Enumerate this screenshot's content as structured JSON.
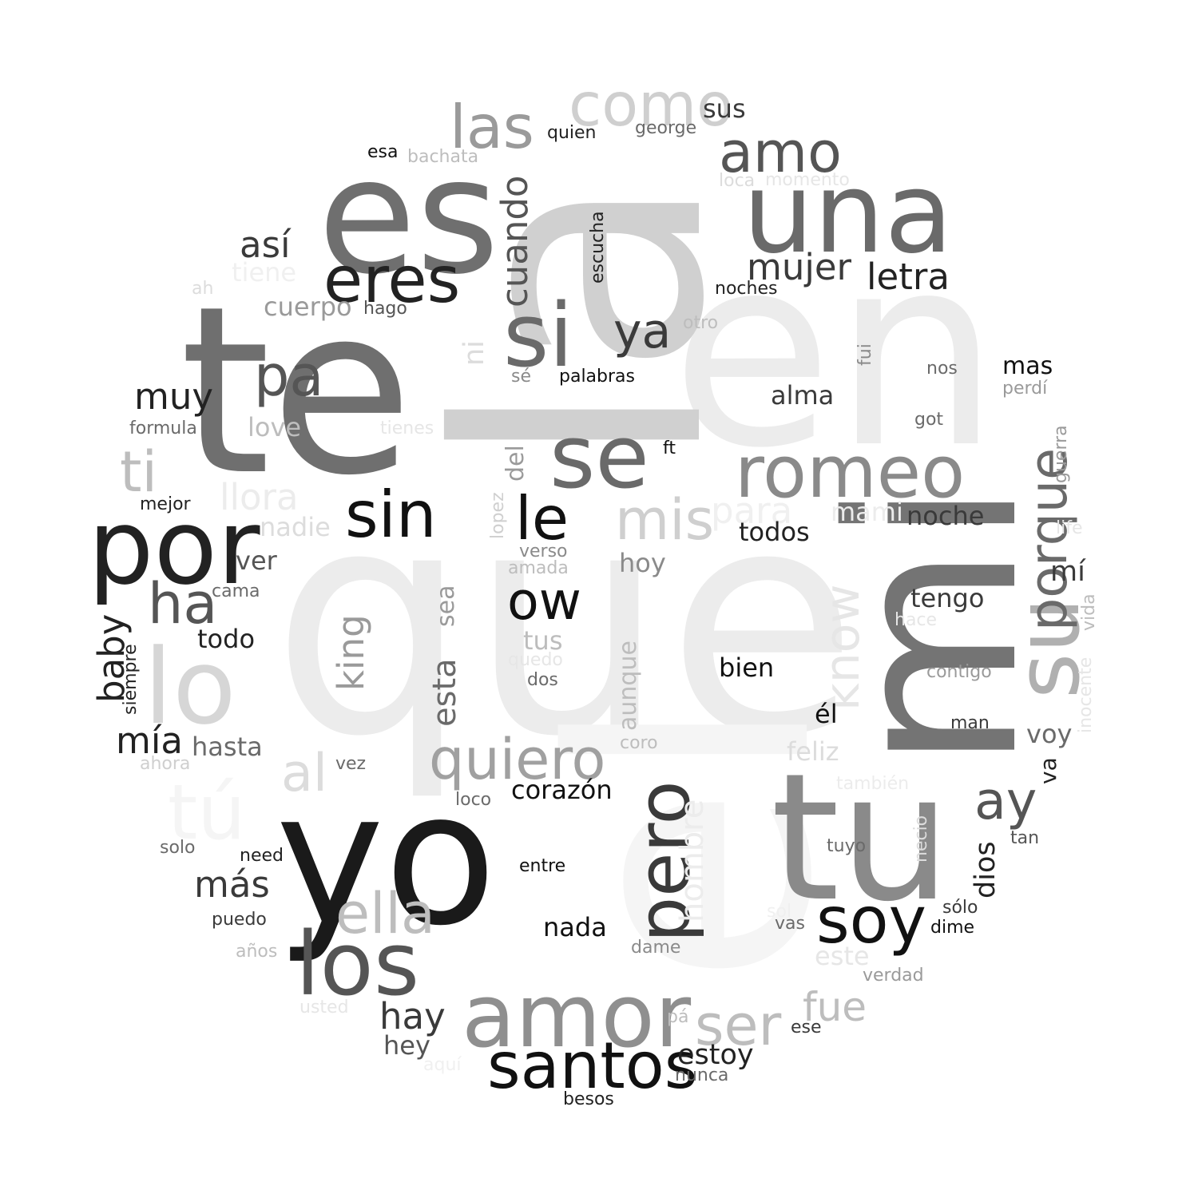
{
  "colors": {
    "background": "#ffffff",
    "shades": [
      "#f5f5f5",
      "#ececec",
      "#dcdcdc",
      "#cfcfcf",
      "#bdbdbd",
      "#9a9a9a",
      "#8a8a8a",
      "#747474",
      "#6a6a6a",
      "#555555",
      "#3a3a3a",
      "#222222",
      "#111111"
    ]
  },
  "words": [
    {
      "text": "que",
      "color": "#ececec",
      "rotate": false
    },
    {
      "text": "el",
      "color": "#f5f5f5",
      "rotate": true
    },
    {
      "text": "en",
      "color": "#ececec",
      "rotate": false
    },
    {
      "text": "la",
      "color": "#d0d0d0",
      "rotate": true
    },
    {
      "text": "te",
      "color": "#6f6f6f",
      "rotate": false
    },
    {
      "text": "mi",
      "color": "#747474",
      "rotate": true
    },
    {
      "text": "yo",
      "color": "#1a1a1a",
      "rotate": false
    },
    {
      "text": "es",
      "color": "#6f6f6f",
      "rotate": false
    },
    {
      "text": "tu",
      "color": "#8a8a8a",
      "rotate": false
    },
    {
      "text": "una",
      "color": "#6a6a6a",
      "rotate": false
    },
    {
      "text": "por",
      "color": "#222222",
      "rotate": false
    },
    {
      "text": "lo",
      "color": "#d6d6d6",
      "rotate": false
    },
    {
      "text": "amor",
      "color": "#8f8f8f",
      "rotate": false
    },
    {
      "text": "los",
      "color": "#555555",
      "rotate": false
    },
    {
      "text": "si",
      "color": "#6a6a6a",
      "rotate": false
    },
    {
      "text": "se",
      "color": "#6a6a6a",
      "rotate": false
    },
    {
      "text": "romeo",
      "color": "#8a8a8a",
      "rotate": false
    },
    {
      "text": "su",
      "color": "#b0b0b0",
      "rotate": true
    },
    {
      "text": "eres",
      "color": "#222222",
      "rotate": false
    },
    {
      "text": "sin",
      "color": "#111111",
      "rotate": false
    },
    {
      "text": "soy",
      "color": "#111111",
      "rotate": false
    },
    {
      "text": "santos",
      "color": "#111111",
      "rotate": false
    },
    {
      "text": "las",
      "color": "#9a9a9a",
      "rotate": false
    },
    {
      "text": "como",
      "color": "#cfcfcf",
      "rotate": false
    },
    {
      "text": "amo",
      "color": "#555555",
      "rotate": false
    },
    {
      "text": "pero",
      "color": "#3a3a3a",
      "rotate": true
    },
    {
      "text": "le",
      "color": "#111111",
      "rotate": false
    },
    {
      "text": "mis",
      "color": "#cfcfcf",
      "rotate": false
    },
    {
      "text": "ella",
      "color": "#bdbdbd",
      "rotate": false
    },
    {
      "text": "quiero",
      "color": "#a0a0a0",
      "rotate": false
    },
    {
      "text": "tú",
      "color": "#f5f5f5",
      "rotate": false
    },
    {
      "text": "ha",
      "color": "#555555",
      "rotate": false
    },
    {
      "text": "pa",
      "color": "#555555",
      "rotate": false
    },
    {
      "text": "ser",
      "color": "#bdbdbd",
      "rotate": false
    },
    {
      "text": "ow",
      "color": "#111111",
      "rotate": false
    },
    {
      "text": "ay",
      "color": "#555555",
      "rotate": false
    },
    {
      "text": "porque",
      "color": "#6a6a6a",
      "rotate": true
    },
    {
      "text": "know",
      "color": "#e6e6e6",
      "rotate": true
    },
    {
      "text": "ti",
      "color": "#bdbdbd",
      "rotate": false
    },
    {
      "text": "al",
      "color": "#dcdcdc",
      "rotate": false
    },
    {
      "text": "ya",
      "color": "#3a3a3a",
      "rotate": false
    },
    {
      "text": "cuando",
      "color": "#555555",
      "rotate": true
    },
    {
      "text": "mujer",
      "color": "#3a3a3a",
      "rotate": false
    },
    {
      "text": "letra",
      "color": "#222222",
      "rotate": false
    },
    {
      "text": "así",
      "color": "#3a3a3a",
      "rotate": false
    },
    {
      "text": "muy",
      "color": "#222222",
      "rotate": false
    },
    {
      "text": "mía",
      "color": "#222222",
      "rotate": false
    },
    {
      "text": "fue",
      "color": "#bdbdbd",
      "rotate": false
    },
    {
      "text": "más",
      "color": "#3a3a3a",
      "rotate": false
    },
    {
      "text": "hay",
      "color": "#3a3a3a",
      "rotate": false
    },
    {
      "text": "para",
      "color": "#f0f0f0",
      "rotate": false
    },
    {
      "text": "llora",
      "color": "#ececec",
      "rotate": false
    },
    {
      "text": "king",
      "color": "#9a9a9a",
      "rotate": true
    },
    {
      "text": "esta",
      "color": "#6a6a6a",
      "rotate": true
    },
    {
      "text": "baby",
      "color": "#222222",
      "rotate": true
    },
    {
      "text": "hombre",
      "color": "#ececec",
      "rotate": true
    },
    {
      "text": "dios",
      "color": "#222222",
      "rotate": true
    },
    {
      "text": "estoy",
      "color": "#222222",
      "rotate": false
    },
    {
      "text": "corazón",
      "color": "#111111",
      "rotate": false
    },
    {
      "text": "nada",
      "color": "#111111",
      "rotate": false
    },
    {
      "text": "noche",
      "color": "#3a3a3a",
      "rotate": false
    },
    {
      "text": "todos",
      "color": "#222222",
      "rotate": false
    },
    {
      "text": "alma",
      "color": "#3a3a3a",
      "rotate": false
    },
    {
      "text": "tengo",
      "color": "#3a3a3a",
      "rotate": false
    },
    {
      "text": "mí",
      "color": "#3a3a3a",
      "rotate": false
    },
    {
      "text": "bien",
      "color": "#111111",
      "rotate": false
    },
    {
      "text": "él",
      "color": "#111111",
      "rotate": false
    },
    {
      "text": "voy",
      "color": "#6a6a6a",
      "rotate": false
    },
    {
      "text": "hasta",
      "color": "#6a6a6a",
      "rotate": false
    },
    {
      "text": "todo",
      "color": "#222222",
      "rotate": false
    },
    {
      "text": "ver",
      "color": "#555555",
      "rotate": false
    },
    {
      "text": "love",
      "color": "#bdbdbd",
      "rotate": false
    },
    {
      "text": "nadie",
      "color": "#dcdcdc",
      "rotate": false
    },
    {
      "text": "ni",
      "color": "#dcdcdc",
      "rotate": true
    },
    {
      "text": "hoy",
      "color": "#8a8a8a",
      "rotate": false
    },
    {
      "text": "tus",
      "color": "#bdbdbd",
      "rotate": false
    },
    {
      "text": "sea",
      "color": "#9a9a9a",
      "rotate": true
    },
    {
      "text": "aunque",
      "color": "#bdbdbd",
      "rotate": true
    },
    {
      "text": "del",
      "color": "#9a9a9a",
      "rotate": true
    },
    {
      "text": "mami",
      "color": "#ececec",
      "rotate": false
    },
    {
      "text": "feliz",
      "color": "#dcdcdc",
      "rotate": false
    },
    {
      "text": "va",
      "color": "#222222",
      "rotate": true
    },
    {
      "text": "este",
      "color": "#e6e6e6",
      "rotate": false
    },
    {
      "text": "hey",
      "color": "#555555",
      "rotate": false
    },
    {
      "text": "sus",
      "color": "#3a3a3a",
      "rotate": false
    },
    {
      "text": "cuerpo",
      "color": "#9a9a9a",
      "rotate": false
    },
    {
      "text": "tiene",
      "color": "#f0f0f0",
      "rotate": false
    },
    {
      "text": "george",
      "color": "#6a6a6a",
      "rotate": false
    },
    {
      "text": "quien",
      "color": "#222222",
      "rotate": false
    },
    {
      "text": "esa",
      "color": "#111111",
      "rotate": false
    },
    {
      "text": "bachata",
      "color": "#bdbdbd",
      "rotate": false
    },
    {
      "text": "loca",
      "color": "#dcdcdc",
      "rotate": false
    },
    {
      "text": "momento",
      "color": "#e6e6e6",
      "rotate": false
    },
    {
      "text": "noches",
      "color": "#222222",
      "rotate": false
    },
    {
      "text": "escucha",
      "color": "#222222",
      "rotate": true
    },
    {
      "text": "ah",
      "color": "#dcdcdc",
      "rotate": false
    },
    {
      "text": "hago",
      "color": "#555555",
      "rotate": false
    },
    {
      "text": "otro",
      "color": "#bdbdbd",
      "rotate": false
    },
    {
      "text": "fui",
      "color": "#8a8a8a",
      "rotate": true
    },
    {
      "text": "palabras",
      "color": "#111111",
      "rotate": false
    },
    {
      "text": "sé",
      "color": "#8a8a8a",
      "rotate": false
    },
    {
      "text": "nos",
      "color": "#6a6a6a",
      "rotate": false
    },
    {
      "text": "mas",
      "color": "#111111",
      "rotate": false
    },
    {
      "text": "perdí",
      "color": "#9a9a9a",
      "rotate": false
    },
    {
      "text": "got",
      "color": "#6a6a6a",
      "rotate": false
    },
    {
      "text": "guerra",
      "color": "#9a9a9a",
      "rotate": true
    },
    {
      "text": "formula",
      "color": "#6a6a6a",
      "rotate": false
    },
    {
      "text": "tienes",
      "color": "#e6e6e6",
      "rotate": false
    },
    {
      "text": "ft",
      "color": "#111111",
      "rotate": false
    },
    {
      "text": "mejor",
      "color": "#222222",
      "rotate": false
    },
    {
      "text": "lopez",
      "color": "#cfcfcf",
      "rotate": true
    },
    {
      "text": "life",
      "color": "#e6e6e6",
      "rotate": false
    },
    {
      "text": "verso",
      "color": "#8a8a8a",
      "rotate": false
    },
    {
      "text": "amada",
      "color": "#bdbdbd",
      "rotate": false
    },
    {
      "text": "cama",
      "color": "#6a6a6a",
      "rotate": false
    },
    {
      "text": "vida",
      "color": "#bdbdbd",
      "rotate": true
    },
    {
      "text": "hace",
      "color": "#e6e6e6",
      "rotate": false
    },
    {
      "text": "siempre",
      "color": "#222222",
      "rotate": true
    },
    {
      "text": "quedo",
      "color": "#e6e6e6",
      "rotate": false
    },
    {
      "text": "dos",
      "color": "#6a6a6a",
      "rotate": false
    },
    {
      "text": "contigo",
      "color": "#9a9a9a",
      "rotate": false
    },
    {
      "text": "inocente",
      "color": "#e6e6e6",
      "rotate": true
    },
    {
      "text": "man",
      "color": "#3a3a3a",
      "rotate": false
    },
    {
      "text": "coro",
      "color": "#bdbdbd",
      "rotate": false
    },
    {
      "text": "ahora",
      "color": "#cfcfcf",
      "rotate": false
    },
    {
      "text": "vez",
      "color": "#6a6a6a",
      "rotate": false
    },
    {
      "text": "también",
      "color": "#ececec",
      "rotate": false
    },
    {
      "text": "loco",
      "color": "#6a6a6a",
      "rotate": false
    },
    {
      "text": "necio",
      "color": "#dcdcdc",
      "rotate": true
    },
    {
      "text": "tan",
      "color": "#555555",
      "rotate": false
    },
    {
      "text": "tuyo",
      "color": "#6a6a6a",
      "rotate": false
    },
    {
      "text": "solo",
      "color": "#6a6a6a",
      "rotate": false
    },
    {
      "text": "need",
      "color": "#222222",
      "rotate": false
    },
    {
      "text": "entre",
      "color": "#111111",
      "rotate": false
    },
    {
      "text": "sólo",
      "color": "#3a3a3a",
      "rotate": false
    },
    {
      "text": "dime",
      "color": "#111111",
      "rotate": false
    },
    {
      "text": "puedo",
      "color": "#3a3a3a",
      "rotate": false
    },
    {
      "text": "sol",
      "color": "#f0f0f0",
      "rotate": false
    },
    {
      "text": "vas",
      "color": "#6a6a6a",
      "rotate": false
    },
    {
      "text": "dame",
      "color": "#8a8a8a",
      "rotate": false
    },
    {
      "text": "años",
      "color": "#bdbdbd",
      "rotate": false
    },
    {
      "text": "verdad",
      "color": "#9a9a9a",
      "rotate": false
    },
    {
      "text": "usted",
      "color": "#e6e6e6",
      "rotate": false
    },
    {
      "text": "pá",
      "color": "#bdbdbd",
      "rotate": false
    },
    {
      "text": "ese",
      "color": "#3a3a3a",
      "rotate": false
    },
    {
      "text": "aquí",
      "color": "#f0f0f0",
      "rotate": false
    },
    {
      "text": "nunca",
      "color": "#6a6a6a",
      "rotate": false
    },
    {
      "text": "besos",
      "color": "#222222",
      "rotate": false
    }
  ]
}
